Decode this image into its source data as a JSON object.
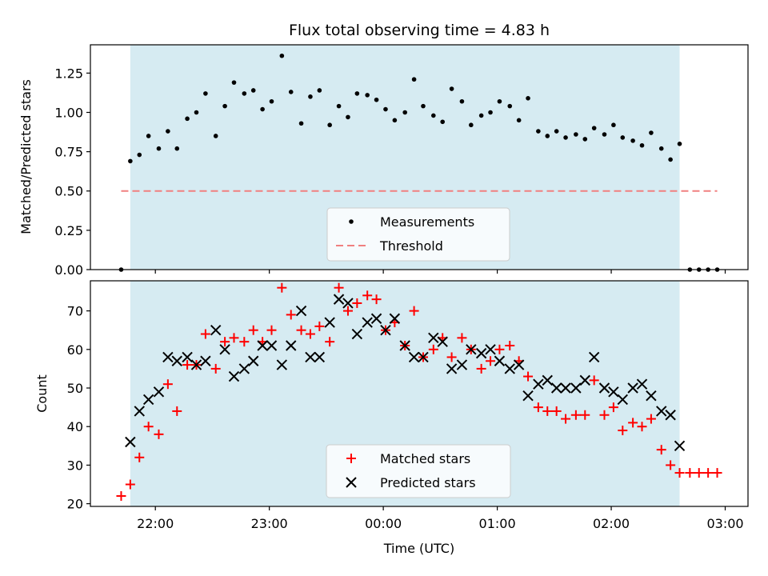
{
  "chart_data": [
    {
      "type": "scatter",
      "title": "Flux total observing time = 4.83 h",
      "xlabel": "",
      "ylabel": "Matched/Predicted stars",
      "ylim": [
        0,
        1.43
      ],
      "yticks": [
        0.0,
        0.25,
        0.5,
        0.75,
        1.0,
        1.25
      ],
      "ytick_labels": [
        "0.00",
        "0.25",
        "0.50",
        "0.75",
        "1.00",
        "1.25"
      ],
      "x_unit": "hours since 00:00 UTC",
      "xlim": [
        -2.57,
        3.2
      ],
      "xticks": [
        -2,
        -1,
        0,
        1,
        2,
        3
      ],
      "grid": false,
      "legend_position": "bottom-center",
      "shaded_span": {
        "x0": -2.22,
        "x1": 2.6,
        "color": "#add8e6"
      },
      "threshold": {
        "name": "Threshold",
        "y": 0.5,
        "x0": -2.3,
        "x1": 2.93,
        "color": "#f08080"
      },
      "series": [
        {
          "name": "Measurements",
          "color": "#000000",
          "x": [
            -2.3,
            -2.22,
            -2.14,
            -2.06,
            -1.97,
            -1.89,
            -1.81,
            -1.72,
            -1.64,
            -1.56,
            -1.47,
            -1.39,
            -1.31,
            -1.22,
            -1.14,
            -1.06,
            -0.98,
            -0.89,
            -0.81,
            -0.72,
            -0.64,
            -0.56,
            -0.47,
            -0.39,
            -0.31,
            -0.23,
            -0.14,
            -0.06,
            0.02,
            0.1,
            0.19,
            0.27,
            0.35,
            0.44,
            0.52,
            0.6,
            0.69,
            0.77,
            0.86,
            0.94,
            1.02,
            1.11,
            1.19,
            1.27,
            1.36,
            1.44,
            1.52,
            1.6,
            1.69,
            1.77,
            1.85,
            1.94,
            2.02,
            2.1,
            2.19,
            2.27,
            2.35,
            2.44,
            2.52,
            2.6,
            2.69,
            2.77,
            2.85,
            2.93
          ],
          "y": [
            0.0,
            0.69,
            0.73,
            0.85,
            0.77,
            0.88,
            0.77,
            0.96,
            1.0,
            1.12,
            0.85,
            1.04,
            1.19,
            1.12,
            1.14,
            1.02,
            1.07,
            1.36,
            1.13,
            0.93,
            1.1,
            1.14,
            0.92,
            1.04,
            0.97,
            1.12,
            1.11,
            1.08,
            1.02,
            0.95,
            1.0,
            1.21,
            1.04,
            0.98,
            0.94,
            1.15,
            1.07,
            0.92,
            0.98,
            1.0,
            1.07,
            1.04,
            0.95,
            1.09,
            0.88,
            0.85,
            0.88,
            0.84,
            0.86,
            0.83,
            0.9,
            0.86,
            0.92,
            0.84,
            0.82,
            0.79,
            0.87,
            0.77,
            0.7,
            0.8,
            0.0,
            0.0,
            0.0,
            0.0
          ]
        }
      ]
    },
    {
      "type": "scatter",
      "title": "",
      "xlabel": "Time (UTC)",
      "ylabel": "Count",
      "ylim": [
        19.3,
        77.8
      ],
      "yticks": [
        20,
        30,
        40,
        50,
        60,
        70
      ],
      "ytick_labels": [
        "20",
        "30",
        "40",
        "50",
        "60",
        "70"
      ],
      "x_unit": "hours since 00:00 UTC",
      "xlim": [
        -2.57,
        3.2
      ],
      "xticks": [
        -2,
        -1,
        0,
        1,
        2,
        3
      ],
      "xtick_labels": [
        "22:00",
        "23:00",
        "00:00",
        "01:00",
        "02:00",
        "03:00"
      ],
      "grid": false,
      "legend_position": "bottom-center",
      "shaded_span": {
        "x0": -2.22,
        "x1": 2.6,
        "color": "#add8e6"
      },
      "series": [
        {
          "name": "Matched stars",
          "marker": "plus",
          "color": "#ff0000",
          "x": [
            -2.3,
            -2.22,
            -2.14,
            -2.06,
            -1.97,
            -1.89,
            -1.81,
            -1.72,
            -1.64,
            -1.56,
            -1.47,
            -1.39,
            -1.31,
            -1.22,
            -1.14,
            -1.06,
            -0.98,
            -0.89,
            -0.81,
            -0.72,
            -0.64,
            -0.56,
            -0.47,
            -0.39,
            -0.31,
            -0.23,
            -0.14,
            -0.06,
            0.02,
            0.1,
            0.19,
            0.27,
            0.35,
            0.44,
            0.52,
            0.6,
            0.69,
            0.77,
            0.86,
            0.94,
            1.02,
            1.11,
            1.19,
            1.27,
            1.36,
            1.44,
            1.52,
            1.6,
            1.69,
            1.77,
            1.85,
            1.94,
            2.02,
            2.1,
            2.19,
            2.27,
            2.35,
            2.44,
            2.52,
            2.6,
            2.69,
            2.77,
            2.85,
            2.93
          ],
          "y": [
            22,
            25,
            32,
            40,
            38,
            51,
            44,
            56,
            56,
            64,
            55,
            62,
            63,
            62,
            65,
            62,
            65,
            76,
            69,
            65,
            64,
            66,
            62,
            76,
            70,
            72,
            74,
            73,
            65,
            67,
            61,
            70,
            58,
            60,
            63,
            58,
            63,
            60,
            55,
            57,
            60,
            61,
            57,
            53,
            45,
            44,
            44,
            42,
            43,
            43,
            52,
            43,
            45,
            39,
            41,
            40,
            42,
            34,
            30,
            28,
            28,
            28,
            28,
            28
          ]
        },
        {
          "name": "Predicted stars",
          "marker": "x",
          "color": "#000000",
          "x": [
            -2.22,
            -2.14,
            -2.06,
            -1.97,
            -1.89,
            -1.81,
            -1.72,
            -1.64,
            -1.56,
            -1.47,
            -1.39,
            -1.31,
            -1.22,
            -1.14,
            -1.06,
            -0.98,
            -0.89,
            -0.81,
            -0.72,
            -0.64,
            -0.56,
            -0.47,
            -0.39,
            -0.31,
            -0.23,
            -0.14,
            -0.06,
            0.02,
            0.1,
            0.19,
            0.27,
            0.35,
            0.44,
            0.52,
            0.6,
            0.69,
            0.77,
            0.86,
            0.94,
            1.02,
            1.11,
            1.19,
            1.27,
            1.36,
            1.44,
            1.52,
            1.6,
            1.69,
            1.77,
            1.85,
            1.94,
            2.02,
            2.1,
            2.19,
            2.27,
            2.35,
            2.44,
            2.52,
            2.6
          ],
          "y": [
            36,
            44,
            47,
            49,
            58,
            57,
            58,
            56,
            57,
            65,
            60,
            53,
            55,
            57,
            61,
            61,
            56,
            61,
            70,
            58,
            58,
            67,
            73,
            72,
            64,
            67,
            68,
            65,
            68,
            61,
            58,
            58,
            63,
            62,
            55,
            56,
            60,
            59,
            60,
            57,
            55,
            56,
            48,
            51,
            52,
            50,
            50,
            50,
            52,
            58,
            50,
            49,
            47,
            50,
            51,
            48,
            44,
            43,
            35
          ]
        }
      ]
    }
  ]
}
